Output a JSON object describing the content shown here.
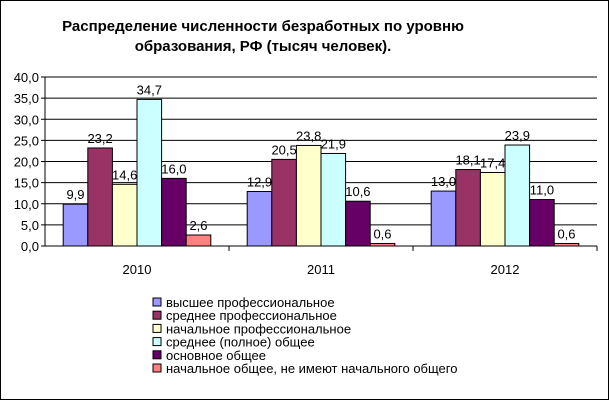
{
  "chart_data": {
    "type": "bar",
    "title_lines": [
      "Распределение численности безработных по уровню",
      "образования, РФ (тысяч человек)."
    ],
    "xlabel": "",
    "ylabel": "",
    "ylim": [
      0,
      40
    ],
    "yticks": [
      "0,0",
      "5,0",
      "10,0",
      "15,0",
      "20,0",
      "25,0",
      "30,0",
      "35,0",
      "40,0"
    ],
    "grid": true,
    "legend_position": "bottom",
    "categories": [
      "2010",
      "2011",
      "2012"
    ],
    "series": [
      {
        "name": "высшее профессиональное",
        "color": "#9999FF",
        "values": [
          9.9,
          12.9,
          13.0
        ],
        "labels": [
          "9,9",
          "12,9",
          "13,0"
        ]
      },
      {
        "name": "среднее профессиональное",
        "color": "#993366",
        "values": [
          23.2,
          20.5,
          18.1
        ],
        "labels": [
          "23,2",
          "20,5",
          "18,1"
        ]
      },
      {
        "name": "начальное профессиональное",
        "color": "#FFFFCC",
        "values": [
          14.6,
          23.8,
          17.4
        ],
        "labels": [
          "14,6",
          "23,8",
          "17,4"
        ]
      },
      {
        "name": "среднее (полное) общее",
        "color": "#CCFFFF",
        "values": [
          34.7,
          21.9,
          23.9
        ],
        "labels": [
          "34,7",
          "21,9",
          "23,9"
        ]
      },
      {
        "name": "основное общее",
        "color": "#660066",
        "values": [
          16.0,
          10.6,
          11.0
        ],
        "labels": [
          "16,0",
          "10,6",
          "11,0"
        ]
      },
      {
        "name": "начальное общее, не имеют начального общего",
        "color": "#FF8080",
        "values": [
          2.6,
          0.6,
          0.6
        ],
        "labels": [
          "2,6",
          "0,6",
          "0,6"
        ]
      }
    ]
  }
}
